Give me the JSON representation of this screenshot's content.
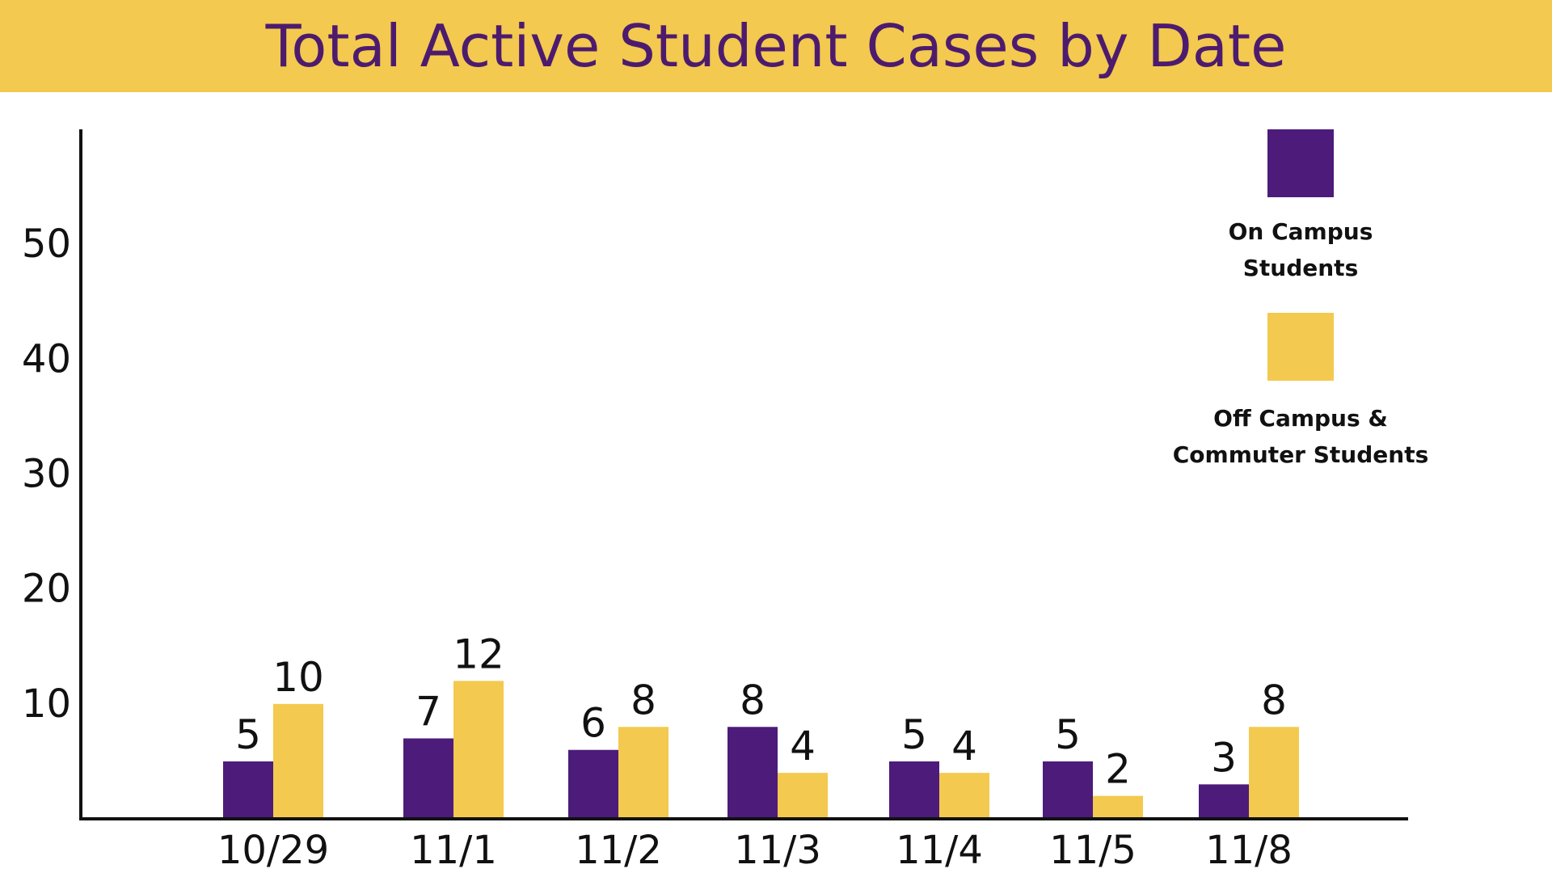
{
  "chart_data": {
    "type": "bar",
    "title": "Total Active Student Cases by Date",
    "categories": [
      "10/29",
      "11/1",
      "11/2",
      "11/3",
      "11/4",
      "11/5",
      "11/8"
    ],
    "series": [
      {
        "name": "On Campus Students",
        "values": [
          5,
          7,
          6,
          8,
          5,
          5,
          3
        ],
        "color": "#4d1b7a"
      },
      {
        "name": "Off Campus & Commuter Students",
        "values": [
          10,
          12,
          8,
          4,
          4,
          2,
          8
        ],
        "color": "#f3c94f"
      }
    ],
    "yticks": [
      10,
      20,
      30,
      40,
      50
    ],
    "ylim": [
      0,
      60
    ],
    "legend": {
      "position": "top-right",
      "labels": [
        [
          "On Campus",
          "Students"
        ],
        [
          "Off Campus &",
          "Commuter Students"
        ]
      ]
    },
    "grid": false
  }
}
